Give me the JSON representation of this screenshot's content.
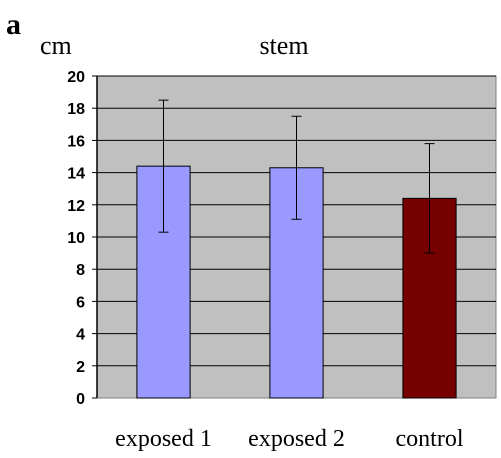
{
  "panel_label": "a",
  "unit_label": "cm",
  "chart_data": {
    "type": "bar",
    "title": "stem",
    "ylabel": "cm",
    "xlabel": "",
    "categories": [
      "exposed 1",
      "exposed 2",
      "control"
    ],
    "values": [
      14.4,
      14.3,
      12.4
    ],
    "error_upper": [
      18.5,
      17.5,
      15.8
    ],
    "error_lower": [
      10.3,
      11.1,
      9.0
    ],
    "colors": [
      "#9999ff",
      "#9999ff",
      "#760000"
    ],
    "plot_background": "#c0c0c0",
    "grid": true,
    "ylim": [
      0,
      20
    ],
    "yticks": [
      "0",
      "2",
      "4",
      "6",
      "8",
      "10",
      "12",
      "14",
      "16",
      "18",
      "20"
    ]
  }
}
